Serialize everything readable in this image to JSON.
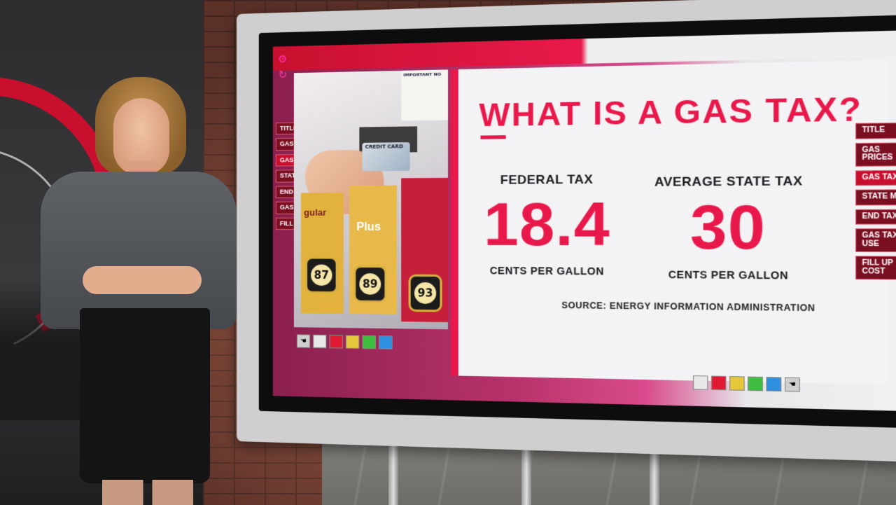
{
  "screen": {
    "headline": "WHAT IS A GAS TAX?",
    "federal": {
      "label": "FEDERAL TAX",
      "value": "18.4",
      "unit": "CENTS PER GALLON"
    },
    "state": {
      "label": "AVERAGE STATE TAX",
      "value": "30",
      "unit": "CENTS PER GALLON"
    },
    "source": "SOURCE: ENERGY INFORMATION ADMINISTRATION",
    "photo": {
      "credit_card": "CREDIT CARD",
      "notice": "IMPORTANT NO",
      "grades": [
        "gular",
        "Plus"
      ],
      "octanes": [
        "87",
        "89",
        "93"
      ]
    }
  },
  "menu_left": [
    "TITLE",
    "GAS PRICES",
    "GAS TAX",
    "STATE MAP",
    "END TAX",
    "GAS TAX USE",
    "FILL UP COST"
  ],
  "menu_right": [
    "TITLE",
    "GAS PRICES",
    "GAS TAX",
    "STATE MAP",
    "END TAX",
    "GAS TAX USE",
    "FILL UP COST"
  ],
  "active_menu_item": "GAS TAX",
  "swatch_colors": [
    "#e8e8e8",
    "#e01a33",
    "#e6c83a",
    "#3fbf3f",
    "#2d8fe0"
  ],
  "icons": [
    "gear-icon",
    "refresh-icon",
    "hand-icon"
  ]
}
